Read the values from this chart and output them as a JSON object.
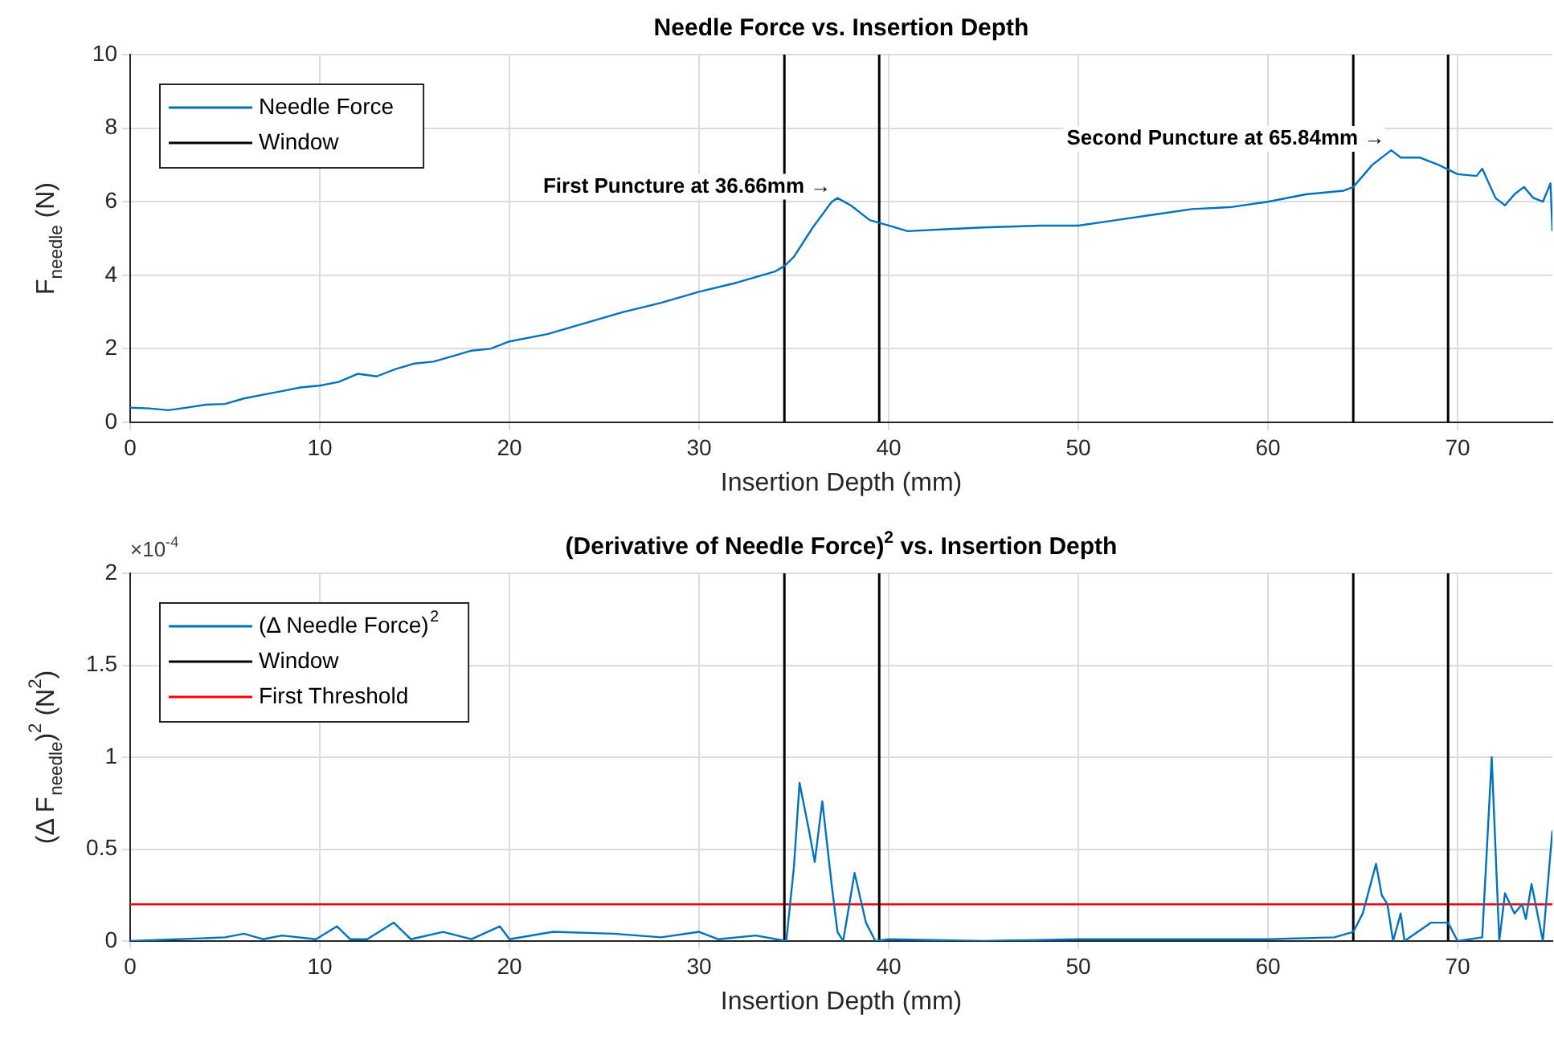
{
  "chart_data": [
    {
      "type": "line",
      "title": "Needle Force vs. Insertion Depth",
      "xlabel": "Insertion Depth (mm)",
      "ylabel": "F$_{needle}$ (N)",
      "xlim": [
        0,
        75
      ],
      "xticks": [
        0,
        10,
        20,
        30,
        40,
        50,
        60,
        70
      ],
      "ylim": [
        0,
        10
      ],
      "yticks": [
        0,
        2,
        4,
        6,
        8,
        10
      ],
      "grid": true,
      "legend": "top left",
      "series": [
        {
          "name": "Needle Force",
          "color": "#0072bd",
          "x": [
            0,
            1,
            2,
            3,
            4,
            5,
            6,
            7,
            8,
            9,
            10,
            11,
            12,
            13,
            14,
            15,
            16,
            17,
            18,
            19,
            20,
            22,
            24,
            26,
            28,
            30,
            32,
            34,
            34.5,
            35,
            36,
            37,
            37.3,
            38,
            39,
            40,
            41,
            43,
            45,
            48,
            50,
            52,
            54,
            56,
            58,
            60,
            62,
            64,
            64.5,
            65.5,
            66.5,
            67,
            68,
            69,
            70,
            71,
            71.3,
            72,
            72.5,
            73,
            73.5,
            74,
            74.5,
            74.9,
            75
          ],
          "values": [
            0.4,
            0.38,
            0.33,
            0.4,
            0.48,
            0.5,
            0.65,
            0.75,
            0.85,
            0.95,
            1.0,
            1.1,
            1.32,
            1.25,
            1.45,
            1.6,
            1.65,
            1.8,
            1.95,
            2.0,
            2.2,
            2.4,
            2.7,
            3.0,
            3.25,
            3.55,
            3.8,
            4.1,
            4.25,
            4.5,
            5.3,
            6.0,
            6.1,
            5.9,
            5.5,
            5.35,
            5.2,
            5.25,
            5.3,
            5.35,
            5.35,
            5.5,
            5.65,
            5.8,
            5.85,
            6.0,
            6.2,
            6.3,
            6.4,
            7.0,
            7.4,
            7.2,
            7.2,
            7.0,
            6.75,
            6.7,
            6.9,
            6.1,
            5.9,
            6.2,
            6.4,
            6.1,
            6.0,
            6.5,
            5.2
          ]
        },
        {
          "name": "Window",
          "color": "#000000",
          "x": [
            34.5,
            34.5,
            null,
            39.5,
            39.5,
            null,
            64.5,
            64.5,
            null,
            69.5,
            69.5
          ],
          "values": [
            0,
            10,
            null,
            0,
            10,
            null,
            0,
            10,
            null,
            0,
            10
          ]
        }
      ],
      "annotations": [
        {
          "text": "First Puncture at 36.66mm →",
          "x": 37.3,
          "y": 6.1
        },
        {
          "text": "Second Puncture at 65.84mm →",
          "x": 66.5,
          "y": 7.4
        }
      ]
    },
    {
      "type": "line",
      "title": "(Derivative of Needle Force)$^{2}$ vs. Insertion Depth",
      "xlabel": "Insertion Depth (mm)",
      "ylabel": "(Δ F$_{needle}$)$^{2}$ (N$^{2}$)",
      "xlim": [
        0,
        75
      ],
      "xticks": [
        0,
        10,
        20,
        30,
        40,
        50,
        60,
        70
      ],
      "ylim": [
        0,
        2
      ],
      "yticks": [
        0,
        0.5,
        1,
        1.5,
        2
      ],
      "grid": true,
      "legend": "top left",
      "series": [
        {
          "name": "(Δ Needle Force)$^{2}$",
          "color": "#0072bd",
          "x": [
            0,
            5,
            6,
            7,
            8,
            9.8,
            10.9,
            11.6,
            12.5,
            13.9,
            14.8,
            16.5,
            18,
            19.5,
            20,
            22.3,
            25.5,
            28,
            30,
            31,
            33,
            34.6,
            35,
            35.3,
            35.8,
            36.1,
            36.5,
            37,
            37.3,
            37.6,
            38.2,
            38.8,
            39.3,
            40,
            45,
            50,
            55,
            60,
            63.5,
            64.5,
            65,
            65.7,
            66,
            66.3,
            66.6,
            67,
            67.2,
            68.6,
            69.5,
            70,
            71.3,
            71.8,
            72.2,
            72.5,
            73,
            73.4,
            73.6,
            73.9,
            74.5,
            75
          ],
          "values": [
            0,
            0.02,
            0.04,
            0.01,
            0.03,
            0.01,
            0.08,
            0.01,
            0.01,
            0.1,
            0.01,
            0.05,
            0.01,
            0.08,
            0.01,
            0.05,
            0.04,
            0.02,
            0.05,
            0.01,
            0.03,
            0,
            0.4,
            0.86,
            0.6,
            0.43,
            0.76,
            0.3,
            0.05,
            0,
            0.37,
            0.1,
            0,
            0.01,
            0,
            0.01,
            0.01,
            0.01,
            0.02,
            0.05,
            0.15,
            0.42,
            0.25,
            0.2,
            0,
            0.15,
            0,
            0.1,
            0.1,
            0,
            0.02,
            1.0,
            0,
            0.26,
            0.15,
            0.2,
            0.12,
            0.31,
            0,
            0.6
          ]
        },
        {
          "name": "Window",
          "color": "#000000",
          "x": [
            34.5,
            34.5,
            null,
            39.5,
            39.5,
            null,
            64.5,
            64.5,
            null,
            69.5,
            69.5
          ],
          "values": [
            0,
            2,
            null,
            0,
            2,
            null,
            0,
            2,
            null,
            0,
            2
          ]
        },
        {
          "name": "First Threshold",
          "color": "#ff0000",
          "x": [
            0,
            75
          ],
          "values": [
            0.2,
            0.2
          ]
        }
      ],
      "annotations": [
        "×10$^{-4}$"
      ]
    }
  ]
}
